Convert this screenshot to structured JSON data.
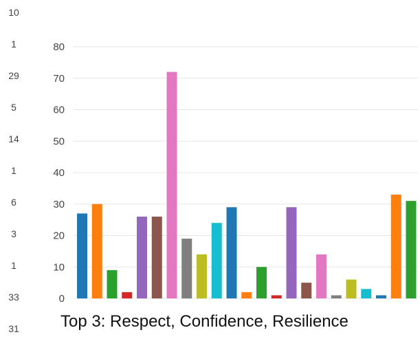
{
  "left_column": [
    "10",
    "1",
    "29",
    "5",
    "14",
    "1",
    "6",
    "3",
    "1",
    "33",
    "31"
  ],
  "caption": "Top 3: Respect, Confidence, Resilience",
  "chart_data": {
    "type": "bar",
    "title": "",
    "xlabel": "",
    "ylabel": "",
    "ylim": [
      0,
      80
    ],
    "yticks": [
      0,
      10,
      20,
      30,
      40,
      50,
      60,
      70,
      80
    ],
    "grid": true,
    "legend": "none",
    "values": [
      27,
      30,
      9,
      2,
      26,
      26,
      72,
      19,
      14,
      24,
      29,
      2,
      10,
      1,
      29,
      5,
      14,
      1,
      6,
      3,
      1,
      33,
      31
    ],
    "colors": [
      "#1f77b4",
      "#ff7f0e",
      "#2ca02c",
      "#d62728",
      "#9467bd",
      "#8c564b",
      "#e377c2",
      "#7f7f7f",
      "#bcbd22",
      "#17becf",
      "#1f77b4",
      "#ff7f0e",
      "#2ca02c",
      "#d62728",
      "#9467bd",
      "#8c564b",
      "#e377c2",
      "#7f7f7f",
      "#bcbd22",
      "#17becf",
      "#1f77b4",
      "#ff7f0e",
      "#2ca02c"
    ]
  }
}
